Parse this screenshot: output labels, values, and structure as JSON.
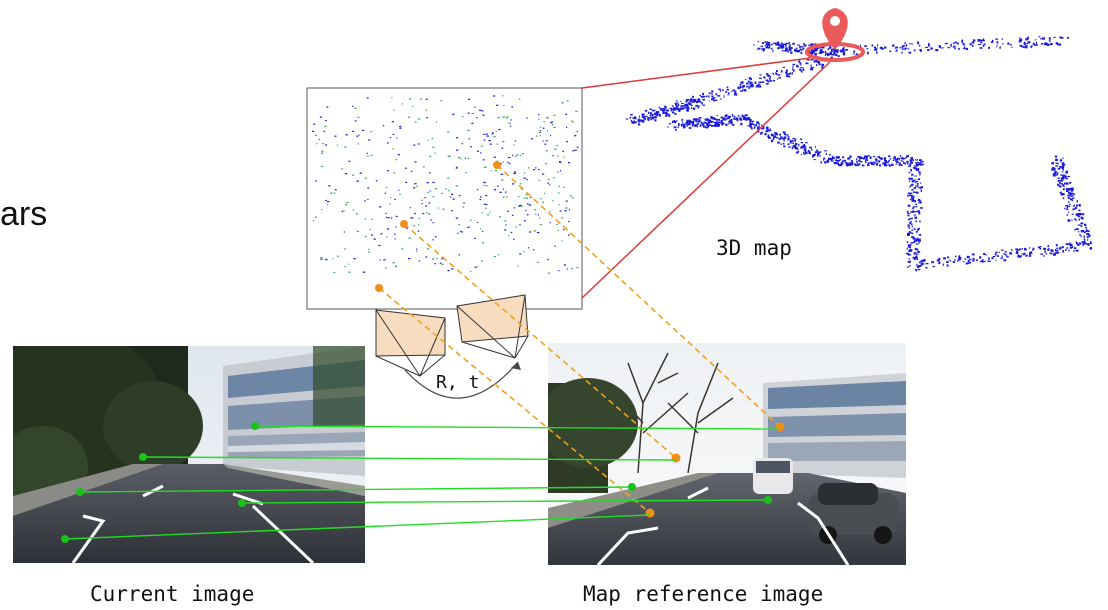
{
  "left_cut_text": "ars",
  "map_label": "3D map",
  "motion_label": "R, t",
  "current_caption": "Current image",
  "reference_caption": "Map reference image",
  "colors": {
    "match_line": "#22dd22",
    "match_point": "#19c219",
    "projection_line": "#f0a020",
    "projection_point": "#f0901a",
    "map_link_line": "#e03a3a",
    "pin": "#ea5a5a",
    "map_points": "#1a1adc",
    "camera_fill": "#f8dcc0"
  }
}
